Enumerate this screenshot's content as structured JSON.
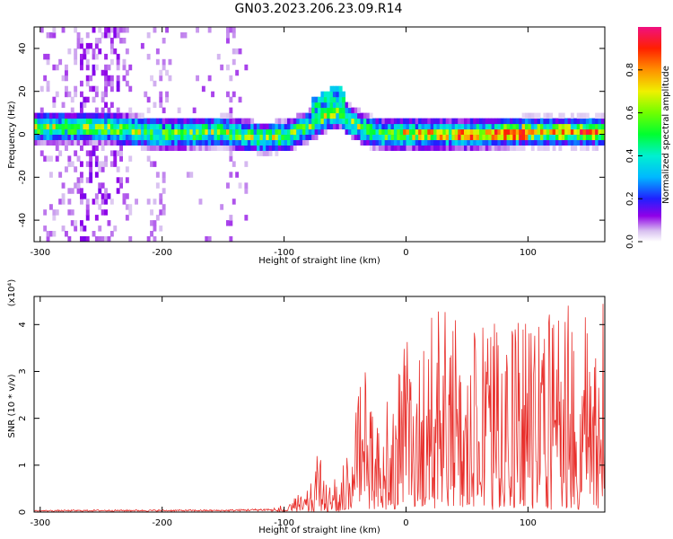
{
  "title": "GN03.2023.206.23.09.R14",
  "chart_data": [
    {
      "type": "heatmap",
      "xlabel": "Height of straight line (km)",
      "ylabel": "Frequency (Hz)",
      "xlim": [
        -305,
        163
      ],
      "ylim": [
        -50,
        50
      ],
      "xticks": [
        -300,
        -200,
        -100,
        0,
        100
      ],
      "yticks": [
        -40,
        -20,
        0,
        20,
        40
      ],
      "colorbar": {
        "label": "Normalized spectral amplitude",
        "range": [
          0,
          1
        ],
        "ticks": [
          0.0,
          0.2,
          0.4,
          0.6,
          0.8
        ]
      },
      "ridge": {
        "x": [
          -305,
          -280,
          -250,
          -200,
          -150,
          -120,
          -100,
          -80,
          -65,
          -55,
          -45,
          -30,
          -20,
          0,
          50,
          100,
          163
        ],
        "freq": [
          2,
          2,
          2,
          -1,
          0,
          -3,
          -2,
          3,
          8,
          9,
          4,
          0,
          -1,
          -1,
          -1,
          0,
          0
        ]
      }
    },
    {
      "type": "line",
      "xlabel": "Height of straight line (km)",
      "ylabel": "SNR (10 * v/v)",
      "ylabel_scale": "(x10⁴)",
      "xlim": [
        -305,
        163
      ],
      "ylim": [
        0,
        4.6
      ],
      "xticks": [
        -300,
        -200,
        -100,
        0,
        100
      ],
      "yticks": [
        0,
        1,
        2,
        3,
        4
      ],
      "color": "#e8302c",
      "envelope": {
        "x": [
          -305,
          -250,
          -150,
          -110,
          -95,
          -80,
          -72,
          -65,
          -55,
          -45,
          -35,
          -20,
          -10,
          0,
          10,
          20,
          40,
          60,
          80,
          100,
          120,
          135,
          150,
          163
        ],
        "y": [
          0.04,
          0.05,
          0.05,
          0.08,
          0.2,
          0.6,
          1.3,
          0.7,
          0.8,
          1.5,
          3.2,
          2.2,
          2.7,
          4.1,
          3.3,
          4.4,
          4.3,
          4.3,
          3.9,
          4.2,
          4.3,
          4.5,
          4.2,
          4.6
        ]
      }
    }
  ]
}
